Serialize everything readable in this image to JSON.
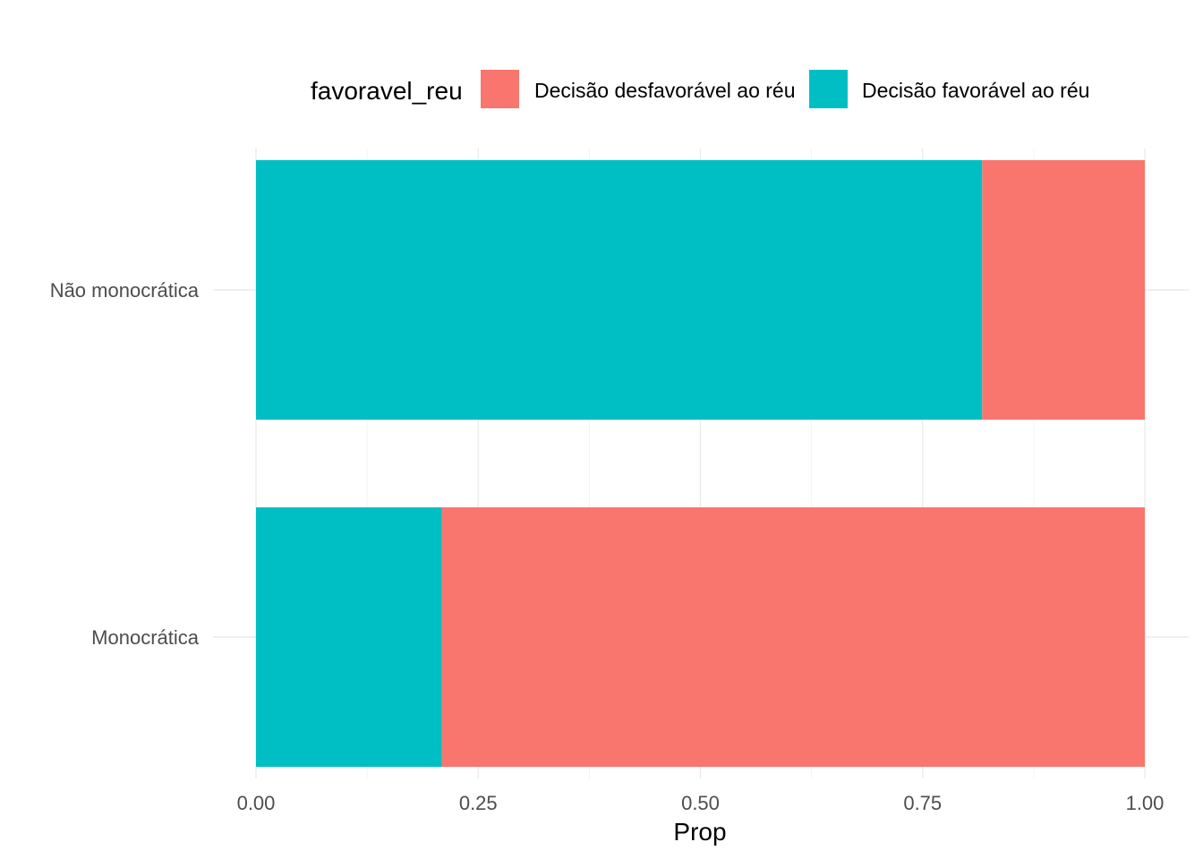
{
  "chart_data": {
    "type": "bar",
    "orientation": "horizontal",
    "stacked": true,
    "categories": [
      "Não monocrática",
      "Monocrática"
    ],
    "series": [
      {
        "name": "Decisão favorável ao réu",
        "color": "#00BFC4",
        "values": [
          0.817,
          0.209
        ]
      },
      {
        "name": "Decisão desfavorável ao réu",
        "color": "#F8766D",
        "values": [
          0.183,
          0.791
        ]
      }
    ],
    "legend_title": "favoravel_reu",
    "legend_order": [
      "Decisão desfavorável ao réu",
      "Decisão favorável ao réu"
    ],
    "legend_position": "top",
    "xlabel": "Prop",
    "ylabel": "",
    "xlim": [
      0,
      1
    ],
    "x_ticks": [
      0,
      0.25,
      0.5,
      0.75,
      1
    ],
    "x_tick_labels": [
      "0.00",
      "0.25",
      "0.50",
      "0.75",
      "1.00"
    ],
    "grid": true
  }
}
